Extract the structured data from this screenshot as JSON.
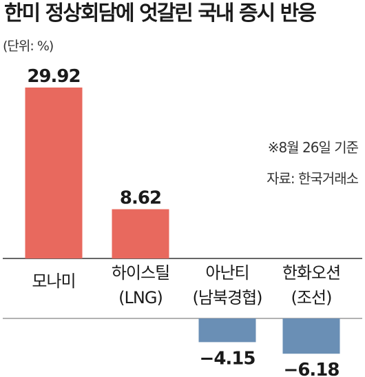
{
  "title": "한미 정상회담에 엇갈린 국내 증시 반응",
  "unit_label": "(단위: %)",
  "notes": [
    "※8월 26일 기준",
    "자료: 한국거래소"
  ],
  "chart_data": {
    "type": "bar",
    "title": "한미 정상회담에 엇갈린 국내 증시 반응",
    "unit": "%",
    "categories": [
      [
        "모나미"
      ],
      [
        "하이스틸",
        "(LNG)"
      ],
      [
        "아난티",
        "(남북경협)"
      ],
      [
        "한화오션",
        "(조선)"
      ]
    ],
    "values": [
      29.92,
      8.62,
      -4.15,
      -6.18
    ],
    "value_labels": [
      "29.92",
      "8.62",
      "−4.15",
      "−6.18"
    ],
    "ylim": [
      -8,
      33
    ],
    "grid": false,
    "legend": "none",
    "colors": {
      "positive": "#e8695e",
      "negative": "#6a8fb5",
      "baseline": "#333333"
    }
  }
}
